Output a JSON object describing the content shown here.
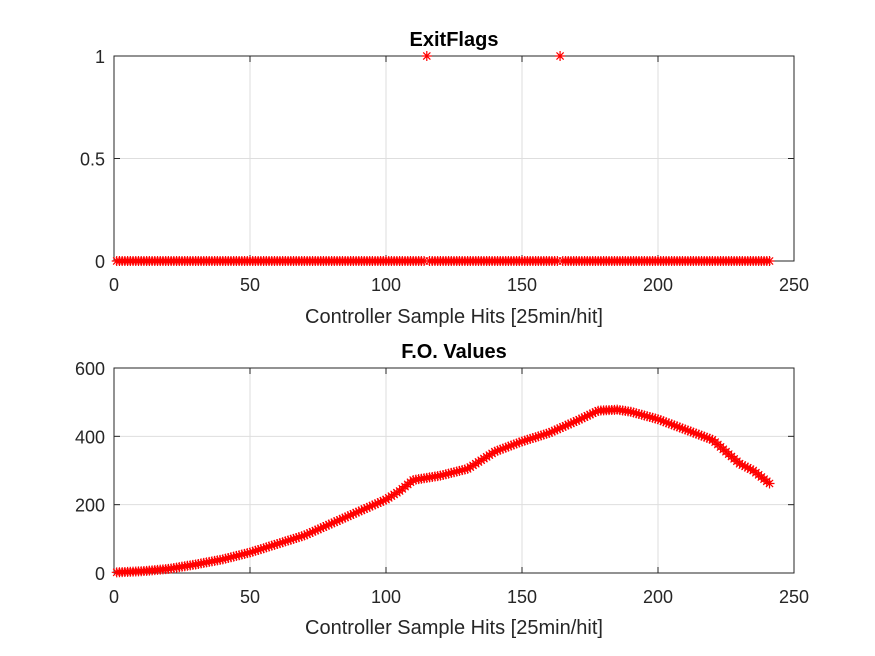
{
  "chart_data": [
    {
      "type": "scatter",
      "title": "ExitFlags",
      "xlabel": "Controller Sample Hits [25min/hit]",
      "ylabel": "",
      "xlim": [
        0,
        250
      ],
      "ylim": [
        0,
        1
      ],
      "xticks": [
        0,
        50,
        100,
        150,
        200,
        250
      ],
      "yticks": [
        0,
        0.5,
        1
      ],
      "xtick_labels": [
        "0",
        "50",
        "100",
        "150",
        "200",
        "250"
      ],
      "ytick_labels": [
        "0",
        "0.5",
        "1"
      ],
      "grid": true,
      "marker": "asterisk",
      "marker_color": "#ff0000",
      "series": [
        {
          "x_start": 1,
          "x_end": 241,
          "default_y": 0,
          "exceptions": [
            {
              "x": 115,
              "y": 1
            },
            {
              "x": 164,
              "y": 1
            }
          ]
        }
      ]
    },
    {
      "type": "scatter",
      "title": "F.O. Values",
      "xlabel": "Controller Sample Hits [25min/hit]",
      "ylabel": "",
      "xlim": [
        0,
        250
      ],
      "ylim": [
        0,
        600
      ],
      "xticks": [
        0,
        50,
        100,
        150,
        200,
        250
      ],
      "yticks": [
        0,
        200,
        400,
        600
      ],
      "xtick_labels": [
        "0",
        "50",
        "100",
        "150",
        "200",
        "250"
      ],
      "ytick_labels": [
        "0",
        "200",
        "400",
        "600"
      ],
      "grid": true,
      "marker": "asterisk",
      "marker_color": "#ff0000",
      "series": [
        {
          "x_start": 1,
          "x_end": 241,
          "anchors": [
            [
              1,
              2
            ],
            [
              10,
              5
            ],
            [
              20,
              12
            ],
            [
              30,
              25
            ],
            [
              40,
              40
            ],
            [
              50,
              60
            ],
            [
              60,
              85
            ],
            [
              70,
              110
            ],
            [
              80,
              145
            ],
            [
              90,
              180
            ],
            [
              100,
              215
            ],
            [
              105,
              240
            ],
            [
              110,
              272
            ],
            [
              120,
              285
            ],
            [
              130,
              305
            ],
            [
              140,
              355
            ],
            [
              150,
              385
            ],
            [
              160,
              410
            ],
            [
              170,
              445
            ],
            [
              178,
              475
            ],
            [
              185,
              478
            ],
            [
              190,
              472
            ],
            [
              200,
              450
            ],
            [
              210,
              420
            ],
            [
              220,
              390
            ],
            [
              230,
              320
            ],
            [
              235,
              300
            ],
            [
              241,
              262
            ]
          ]
        }
      ]
    }
  ]
}
